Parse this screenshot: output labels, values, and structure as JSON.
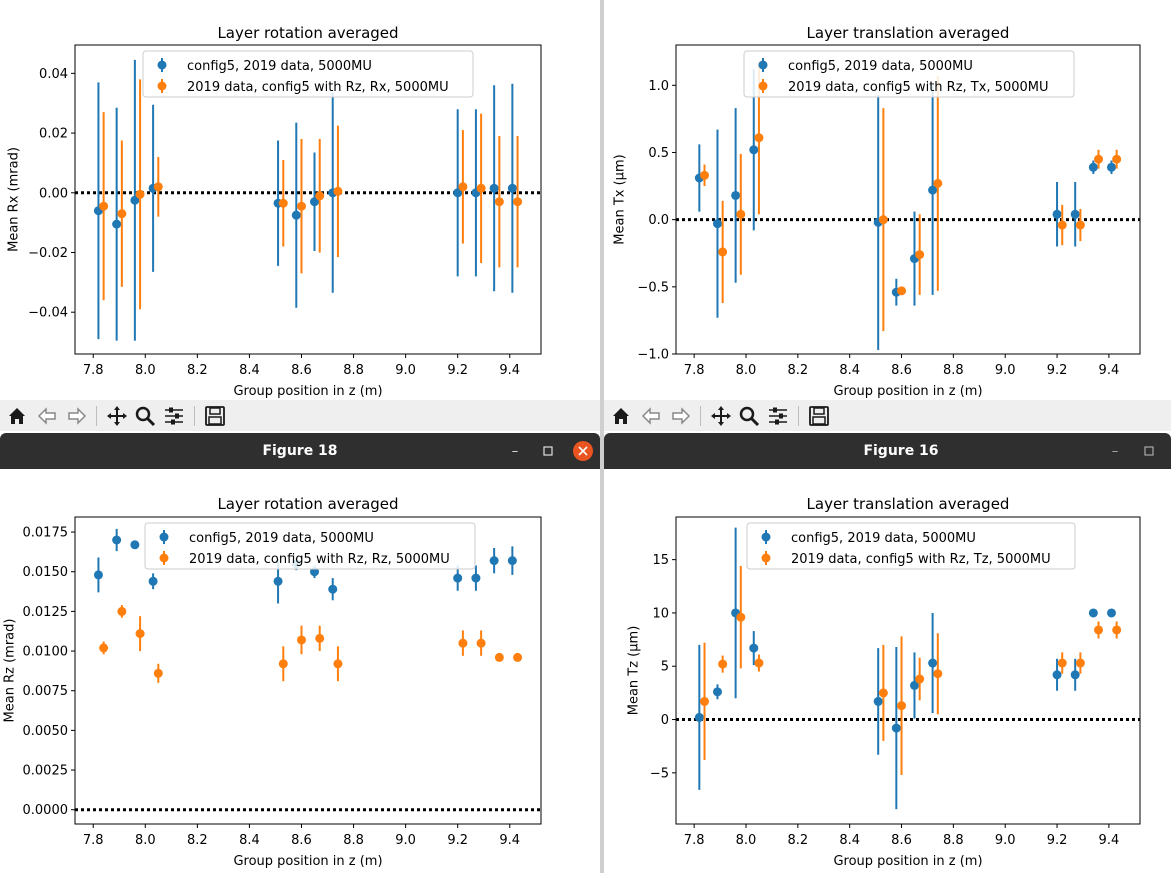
{
  "windows": [
    {
      "id": "w18",
      "title": "Figure 18",
      "has_close": true
    },
    {
      "id": "w16",
      "title": "Figure 16",
      "has_close": false
    }
  ],
  "colors": {
    "blue": "#1f77b4",
    "orange": "#ff7f0e",
    "titlebar": "#2f2f2f",
    "toolbar": "#efefef",
    "close": "#e95420"
  },
  "toolbar_icons": [
    "home-icon",
    "back-icon",
    "forward-icon",
    "pan-icon",
    "zoom-icon",
    "configure-subplots-icon",
    "save-icon"
  ],
  "chart_data": [
    {
      "id": "p1",
      "type": "scatter",
      "title": "Layer rotation averaged",
      "xlabel": "Group position in z (m)",
      "ylabel": "Mean Rx (mrad)",
      "xlim": [
        7.73,
        9.52
      ],
      "ylim": [
        -0.054,
        0.0495
      ],
      "xticks": [
        "7.8",
        "8.0",
        "8.2",
        "8.4",
        "8.6",
        "8.8",
        "9.0",
        "9.2",
        "9.4"
      ],
      "yticks": [
        "−0.04",
        "−0.02",
        "0.00",
        "0.02",
        "0.04"
      ],
      "ytick_values": [
        -0.04,
        -0.02,
        0.0,
        0.02,
        0.04
      ],
      "legend_position": "top-center",
      "grid": false,
      "reference_line_y": 0,
      "series": [
        {
          "name": "config5, 2019 data, 5000MU",
          "color": "#1f77b4",
          "x": [
            7.82,
            7.89,
            7.96,
            8.03,
            8.51,
            8.58,
            8.65,
            8.72,
            9.2,
            9.27,
            9.34,
            9.41
          ],
          "y": [
            -0.006,
            -0.0105,
            -0.0025,
            0.0015,
            -0.0035,
            -0.0075,
            -0.003,
            0.0,
            0.0,
            0.0,
            0.0015,
            0.0015
          ],
          "err": [
            0.043,
            0.039,
            0.047,
            0.028,
            0.021,
            0.031,
            0.0165,
            0.0335,
            0.028,
            0.028,
            0.0345,
            0.035
          ]
        },
        {
          "name": "2019 data, config5 with Rz, Rx, 5000MU",
          "color": "#ff7f0e",
          "x": [
            7.84,
            7.91,
            7.98,
            8.05,
            8.53,
            8.6,
            8.67,
            8.74,
            9.22,
            9.29,
            9.36,
            9.43
          ],
          "y": [
            -0.0045,
            -0.007,
            -0.0005,
            0.002,
            -0.0035,
            -0.0045,
            -0.001,
            0.0005,
            0.002,
            0.0015,
            -0.003,
            -0.003
          ],
          "err": [
            0.0315,
            0.0245,
            0.0385,
            0.01,
            0.0145,
            0.0225,
            0.019,
            0.022,
            0.019,
            0.025,
            0.022,
            0.022
          ]
        }
      ]
    },
    {
      "id": "p2",
      "type": "scatter",
      "title": "Layer translation averaged",
      "xlabel": "Group position in z (m)",
      "ylabel": "Mean Tx (μm)",
      "xlim": [
        7.73,
        9.52
      ],
      "ylim": [
        -1.0,
        1.3
      ],
      "xticks": [
        "7.8",
        "8.0",
        "8.2",
        "8.4",
        "8.6",
        "8.8",
        "9.0",
        "9.2",
        "9.4"
      ],
      "yticks": [
        "−1.0",
        "−0.5",
        "0.0",
        "0.5",
        "1.0"
      ],
      "ytick_values": [
        -1.0,
        -0.5,
        0.0,
        0.5,
        1.0
      ],
      "legend_position": "top-center",
      "grid": false,
      "reference_line_y": 0,
      "series": [
        {
          "name": "config5, 2019 data, 5000MU",
          "color": "#1f77b4",
          "x": [
            7.82,
            7.89,
            7.96,
            8.03,
            8.51,
            8.58,
            8.65,
            8.72,
            9.2,
            9.27,
            9.34,
            9.41
          ],
          "y": [
            0.31,
            -0.03,
            0.18,
            0.52,
            -0.02,
            -0.54,
            -0.29,
            0.22,
            0.04,
            0.04,
            0.39,
            0.39
          ],
          "err": [
            0.25,
            0.7,
            0.65,
            0.6,
            0.95,
            0.1,
            0.35,
            0.78,
            0.24,
            0.24,
            0.05,
            0.05
          ]
        },
        {
          "name": "2019 data, config5 with Rz, Tx, 5000MU",
          "color": "#ff7f0e",
          "x": [
            7.84,
            7.91,
            7.98,
            8.05,
            8.53,
            8.6,
            8.67,
            8.74,
            9.22,
            9.29,
            9.36,
            9.43
          ],
          "y": [
            0.33,
            -0.24,
            0.04,
            0.61,
            0.0,
            -0.53,
            -0.26,
            0.27,
            -0.04,
            -0.04,
            0.45,
            0.45
          ],
          "err": [
            0.08,
            0.38,
            0.45,
            0.57,
            0.83,
            0.03,
            0.3,
            0.8,
            0.15,
            0.12,
            0.07,
            0.07
          ]
        }
      ]
    },
    {
      "id": "p3",
      "type": "scatter",
      "title": "Layer rotation averaged",
      "xlabel": "Group position in z (m)",
      "ylabel": "Mean Rz (mrad)",
      "xlim": [
        7.73,
        9.52
      ],
      "ylim": [
        -0.0009,
        0.01845
      ],
      "xticks": [
        "7.8",
        "8.0",
        "8.2",
        "8.4",
        "8.6",
        "8.8",
        "9.0",
        "9.2",
        "9.4"
      ],
      "yticks": [
        "0.0000",
        "0.0025",
        "0.0050",
        "0.0075",
        "0.0100",
        "0.0125",
        "0.0150",
        "0.0175"
      ],
      "ytick_values": [
        0.0,
        0.0025,
        0.005,
        0.0075,
        0.01,
        0.0125,
        0.015,
        0.0175
      ],
      "legend_position": "top-center",
      "grid": false,
      "reference_line_y": 0,
      "series": [
        {
          "name": "config5, 2019 data, 5000MU",
          "color": "#1f77b4",
          "x": [
            7.82,
            7.89,
            7.96,
            8.03,
            8.51,
            8.58,
            8.65,
            8.72,
            9.2,
            9.27,
            9.34,
            9.41
          ],
          "y": [
            0.0148,
            0.017,
            0.0167,
            0.0144,
            0.0144,
            0.0155,
            0.015,
            0.0139,
            0.0146,
            0.0146,
            0.0157,
            0.0157
          ],
          "err": [
            0.0011,
            0.0007,
            0.0002,
            0.0005,
            0.0014,
            0.0004,
            0.0004,
            0.0007,
            0.0008,
            0.0008,
            0.0008,
            0.0009
          ]
        },
        {
          "name": "2019 data, config5 with Rz, Rz, 5000MU",
          "color": "#ff7f0e",
          "x": [
            7.84,
            7.91,
            7.98,
            8.05,
            8.53,
            8.6,
            8.67,
            8.74,
            9.22,
            9.29,
            9.36,
            9.43
          ],
          "y": [
            0.0102,
            0.0125,
            0.0111,
            0.0086,
            0.0092,
            0.0107,
            0.0108,
            0.0092,
            0.0105,
            0.0105,
            0.0096,
            0.0096
          ],
          "err": [
            0.0004,
            0.0004,
            0.0011,
            0.0006,
            0.0011,
            0.0009,
            0.0008,
            0.0011,
            0.0008,
            0.0008,
            0.0001,
            0.0001
          ]
        }
      ]
    },
    {
      "id": "p4",
      "type": "scatter",
      "title": "Layer translation averaged",
      "xlabel": "Group position in z (m)",
      "ylabel": "Mean Tz (μm)",
      "xlim": [
        7.73,
        9.52
      ],
      "ylim": [
        -9.8,
        19.0
      ],
      "xticks": [
        "7.8",
        "8.0",
        "8.2",
        "8.4",
        "8.6",
        "8.8",
        "9.0",
        "9.2",
        "9.4"
      ],
      "yticks": [
        "−5",
        "0",
        "5",
        "10",
        "15"
      ],
      "ytick_values": [
        -5,
        0,
        5,
        10,
        15
      ],
      "legend_position": "top-center",
      "grid": false,
      "reference_line_y": 0,
      "series": [
        {
          "name": "config5, 2019 data, 5000MU",
          "color": "#1f77b4",
          "x": [
            7.82,
            7.89,
            7.96,
            8.03,
            8.51,
            8.58,
            8.65,
            8.72,
            9.2,
            9.27,
            9.34,
            9.41
          ],
          "y": [
            0.2,
            2.6,
            10.0,
            6.7,
            1.7,
            -0.8,
            3.2,
            5.3,
            4.2,
            4.2,
            10.0,
            10.0
          ],
          "err": [
            6.8,
            0.7,
            8.0,
            1.6,
            5.0,
            7.6,
            3.1,
            4.7,
            1.5,
            1.5,
            0.2,
            0.2
          ]
        },
        {
          "name": "2019 data, config5 with Rz, Tz, 5000MU",
          "color": "#ff7f0e",
          "x": [
            7.84,
            7.91,
            7.98,
            8.05,
            8.53,
            8.6,
            8.67,
            8.74,
            9.22,
            9.29,
            9.36,
            9.43
          ],
          "y": [
            1.7,
            5.2,
            9.6,
            5.3,
            2.5,
            1.3,
            3.8,
            4.3,
            5.3,
            5.3,
            8.4,
            8.4
          ],
          "err": [
            5.5,
            0.8,
            4.8,
            0.8,
            4.5,
            6.5,
            2.0,
            3.8,
            1.0,
            1.0,
            0.8,
            0.8
          ]
        }
      ]
    }
  ]
}
